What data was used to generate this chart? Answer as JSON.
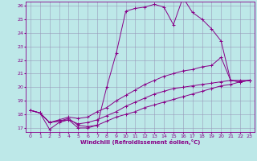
{
  "xlabel": "Windchill (Refroidissement éolien,°C)",
  "xlim": [
    -0.5,
    23.5
  ],
  "ylim": [
    16.7,
    26.3
  ],
  "yticks": [
    17,
    18,
    19,
    20,
    21,
    22,
    23,
    24,
    25,
    26
  ],
  "xticks": [
    0,
    1,
    2,
    3,
    4,
    5,
    6,
    7,
    8,
    9,
    10,
    11,
    12,
    13,
    14,
    15,
    16,
    17,
    18,
    19,
    20,
    21,
    22,
    23
  ],
  "bg_color": "#bde8e8",
  "line_color": "#880088",
  "grid_color": "#9999bb",
  "lines": [
    {
      "x": [
        0,
        1,
        2,
        3,
        4,
        5,
        6,
        7,
        8,
        9,
        10,
        11,
        12,
        13,
        14,
        15,
        16,
        17,
        18,
        19,
        20,
        21,
        22,
        23
      ],
      "y": [
        18.3,
        18.1,
        16.9,
        17.4,
        17.6,
        17.0,
        17.0,
        17.2,
        20.0,
        22.5,
        25.6,
        25.8,
        25.9,
        26.1,
        25.9,
        24.6,
        26.6,
        25.5,
        25.0,
        24.3,
        23.4,
        20.5,
        20.4,
        20.5
      ]
    },
    {
      "x": [
        0,
        1,
        2,
        3,
        4,
        5,
        6,
        7,
        8,
        9,
        10,
        11,
        12,
        13,
        14,
        15,
        16,
        17,
        18,
        19,
        20,
        21,
        22,
        23
      ],
      "y": [
        18.3,
        18.1,
        17.4,
        17.6,
        17.8,
        17.7,
        17.8,
        18.2,
        18.5,
        19.0,
        19.4,
        19.8,
        20.2,
        20.5,
        20.8,
        21.0,
        21.2,
        21.3,
        21.5,
        21.6,
        22.2,
        20.5,
        20.4,
        20.5
      ]
    },
    {
      "x": [
        0,
        1,
        2,
        3,
        4,
        5,
        6,
        7,
        8,
        9,
        10,
        11,
        12,
        13,
        14,
        15,
        16,
        17,
        18,
        19,
        20,
        21,
        22,
        23
      ],
      "y": [
        18.3,
        18.1,
        17.4,
        17.5,
        17.6,
        17.3,
        17.4,
        17.6,
        17.9,
        18.2,
        18.6,
        18.9,
        19.2,
        19.5,
        19.7,
        19.9,
        20.0,
        20.1,
        20.2,
        20.3,
        20.4,
        20.5,
        20.5,
        20.5
      ]
    },
    {
      "x": [
        0,
        1,
        2,
        3,
        4,
        5,
        6,
        7,
        8,
        9,
        10,
        11,
        12,
        13,
        14,
        15,
        16,
        17,
        18,
        19,
        20,
        21,
        22,
        23
      ],
      "y": [
        18.3,
        18.1,
        17.4,
        17.5,
        17.7,
        17.2,
        17.1,
        17.2,
        17.5,
        17.8,
        18.0,
        18.2,
        18.5,
        18.7,
        18.9,
        19.1,
        19.3,
        19.5,
        19.7,
        19.9,
        20.1,
        20.2,
        20.4,
        20.5
      ]
    }
  ]
}
